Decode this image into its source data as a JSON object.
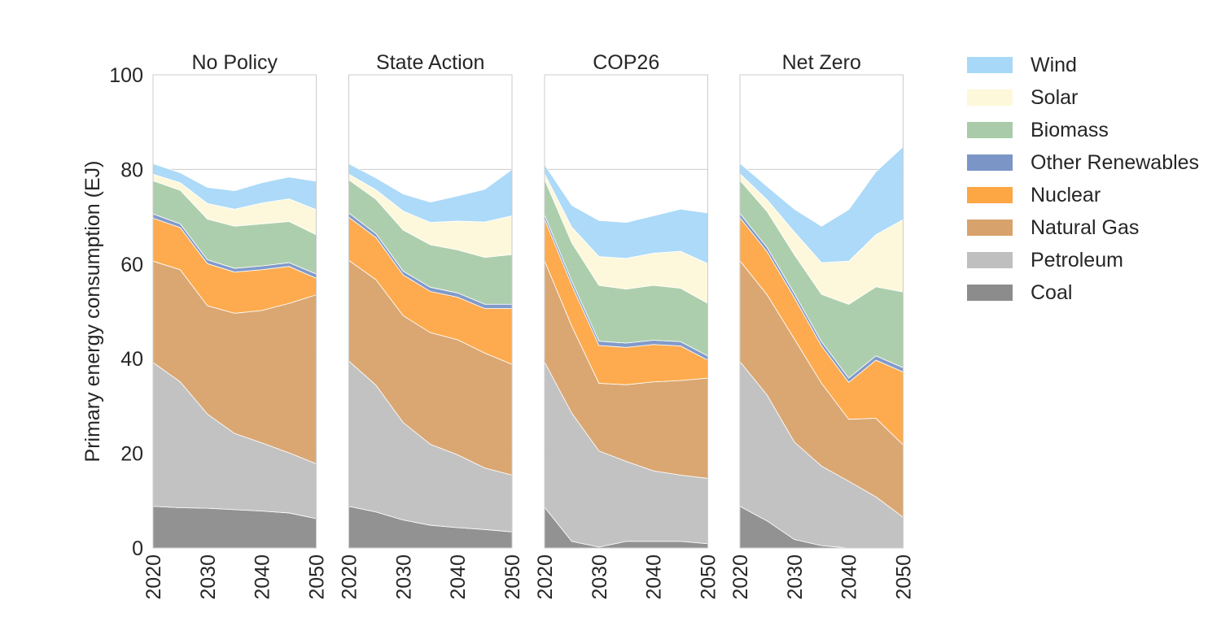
{
  "chart_data": {
    "type": "area",
    "stacked": true,
    "ylabel": "Primary energy consumption (EJ)",
    "ylim": [
      0,
      100
    ],
    "yticks": [
      0,
      20,
      40,
      60,
      80,
      100
    ],
    "x": [
      2020,
      2025,
      2030,
      2035,
      2040,
      2045,
      2050
    ],
    "xticks": [
      "2020",
      "2030",
      "2040",
      "2050"
    ],
    "grid": true,
    "legend_position": "right",
    "legend_order": [
      "Wind",
      "Solar",
      "Biomass",
      "Other Renewables",
      "Nuclear",
      "Natural Gas",
      "Petroleum",
      "Coal"
    ],
    "colors": {
      "Coal": "#8c8c8c",
      "Petroleum": "#bfbfbf",
      "Natural Gas": "#d8a26c",
      "Nuclear": "#fda644",
      "Other Renewables": "#7a95c6",
      "Biomass": "#a9cba9",
      "Solar": "#fdf8d9",
      "Wind": "#a8d8f8"
    },
    "stack_order": [
      "Coal",
      "Petroleum",
      "Natural Gas",
      "Nuclear",
      "Other Renewables",
      "Biomass",
      "Solar",
      "Wind"
    ],
    "panels": [
      {
        "title": "No Policy",
        "series": [
          {
            "name": "Coal",
            "values": [
              8.8,
              8.5,
              8.4,
              8.1,
              7.8,
              7.4,
              6.2
            ]
          },
          {
            "name": "Petroleum",
            "values": [
              30.4,
              26.6,
              19.9,
              16.1,
              14.4,
              12.7,
              11.6
            ]
          },
          {
            "name": "Natural Gas",
            "values": [
              21.4,
              23.7,
              22.9,
              25.4,
              28.0,
              31.6,
              35.7
            ]
          },
          {
            "name": "Nuclear",
            "values": [
              9.1,
              8.9,
              8.9,
              8.7,
              8.6,
              7.8,
              3.5
            ]
          },
          {
            "name": "Other Renewables",
            "values": [
              0.9,
              0.8,
              0.8,
              0.8,
              0.8,
              0.8,
              0.9
            ]
          },
          {
            "name": "Biomass",
            "values": [
              7.0,
              7.1,
              8.6,
              8.9,
              8.9,
              8.7,
              8.3
            ]
          },
          {
            "name": "Solar",
            "values": [
              1.4,
              1.6,
              3.3,
              3.6,
              4.4,
              4.8,
              5.3
            ]
          },
          {
            "name": "Wind",
            "values": [
              2.2,
              2.1,
              3.4,
              3.9,
              4.3,
              4.6,
              6.0
            ]
          }
        ]
      },
      {
        "title": "State Action",
        "series": [
          {
            "name": "Coal",
            "values": [
              8.8,
              7.6,
              5.9,
              4.8,
              4.3,
              3.9,
              3.4
            ]
          },
          {
            "name": "Petroleum",
            "values": [
              30.7,
              26.8,
              20.6,
              17.1,
              15.4,
              13.0,
              12.0
            ]
          },
          {
            "name": "Natural Gas",
            "values": [
              21.3,
              22.3,
              22.6,
              23.6,
              24.3,
              24.3,
              23.4
            ]
          },
          {
            "name": "Nuclear",
            "values": [
              9.1,
              8.9,
              8.6,
              8.7,
              9.0,
              9.4,
              11.8
            ]
          },
          {
            "name": "Other Renewables",
            "values": [
              0.9,
              0.8,
              0.8,
              0.9,
              0.9,
              0.9,
              0.9
            ]
          },
          {
            "name": "Biomass",
            "values": [
              7.0,
              7.3,
              8.7,
              9.0,
              9.1,
              9.9,
              10.5
            ]
          },
          {
            "name": "Solar",
            "values": [
              1.2,
              2.0,
              4.0,
              4.7,
              6.1,
              7.5,
              8.2
            ]
          },
          {
            "name": "Wind",
            "values": [
              2.2,
              2.5,
              3.6,
              4.3,
              5.3,
              6.9,
              9.8
            ]
          }
        ]
      },
      {
        "title": "COP26",
        "series": [
          {
            "name": "Coal",
            "values": [
              8.6,
              1.4,
              0.2,
              1.4,
              1.4,
              1.4,
              0.9
            ]
          },
          {
            "name": "Petroleum",
            "values": [
              30.7,
              27.1,
              20.3,
              16.9,
              14.9,
              14.0,
              13.8
            ]
          },
          {
            "name": "Natural Gas",
            "values": [
              21.4,
              18.4,
              14.3,
              16.2,
              18.8,
              20.0,
              21.2
            ]
          },
          {
            "name": "Nuclear",
            "values": [
              8.8,
              8.6,
              8.0,
              7.9,
              7.9,
              7.3,
              3.8
            ]
          },
          {
            "name": "Other Renewables",
            "values": [
              0.9,
              0.9,
              0.9,
              0.9,
              0.9,
              0.9,
              0.9
            ]
          },
          {
            "name": "Biomass",
            "values": [
              7.5,
              8.1,
              11.8,
              11.4,
              11.6,
              11.3,
              11.1
            ]
          },
          {
            "name": "Solar",
            "values": [
              1.2,
              3.3,
              6.1,
              6.5,
              6.8,
              7.8,
              8.4
            ]
          },
          {
            "name": "Wind",
            "values": [
              1.9,
              4.6,
              7.6,
              7.6,
              7.9,
              8.9,
              10.7
            ]
          }
        ]
      },
      {
        "title": "Net Zero",
        "series": [
          {
            "name": "Coal",
            "values": [
              8.8,
              5.7,
              1.8,
              0.5,
              0.0,
              0.0,
              0.0
            ]
          },
          {
            "name": "Petroleum",
            "values": [
              30.6,
              26.6,
              20.6,
              16.8,
              14.1,
              10.8,
              6.5
            ]
          },
          {
            "name": "Natural Gas",
            "values": [
              21.3,
              21.2,
              21.8,
              17.5,
              13.1,
              16.6,
              15.3
            ]
          },
          {
            "name": "Nuclear",
            "values": [
              9.1,
              9.1,
              8.7,
              7.9,
              7.8,
              12.3,
              15.4
            ]
          },
          {
            "name": "Other Renewables",
            "values": [
              0.9,
              0.9,
              0.9,
              0.9,
              0.9,
              0.9,
              0.9
            ]
          },
          {
            "name": "Biomass",
            "values": [
              7.0,
              7.6,
              8.2,
              10.0,
              15.6,
              14.6,
              16.0
            ]
          },
          {
            "name": "Solar",
            "values": [
              1.4,
              2.5,
              4.8,
              6.7,
              9.1,
              11.0,
              15.3
            ]
          },
          {
            "name": "Wind",
            "values": [
              2.2,
              2.8,
              4.8,
              7.7,
              10.9,
              13.3,
              15.4
            ]
          }
        ]
      }
    ]
  }
}
